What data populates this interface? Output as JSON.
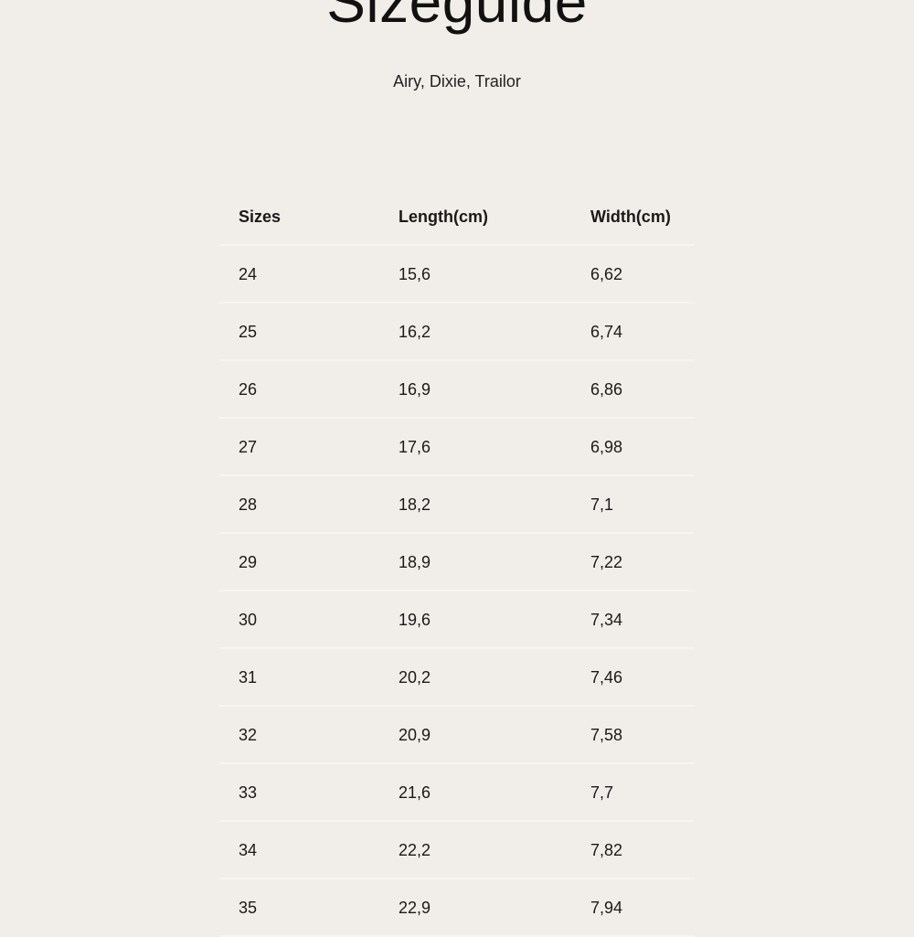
{
  "title": "Sizeguide",
  "subtitle": "Airy, Dixie, Trailor",
  "table": {
    "headers": [
      "Sizes",
      "Length(cm)",
      "Width(cm)"
    ],
    "rows": [
      [
        "24",
        "15,6",
        "6,62"
      ],
      [
        "25",
        "16,2",
        "6,74"
      ],
      [
        "26",
        "16,9",
        "6,86"
      ],
      [
        "27",
        "17,6",
        "6,98"
      ],
      [
        "28",
        "18,2",
        "7,1"
      ],
      [
        "29",
        "18,9",
        "7,22"
      ],
      [
        "30",
        "19,6",
        "7,34"
      ],
      [
        "31",
        "20,2",
        "7,46"
      ],
      [
        "32",
        "20,9",
        "7,58"
      ],
      [
        "33",
        "21,6",
        "7,7"
      ],
      [
        "34",
        "22,2",
        "7,82"
      ],
      [
        "35",
        "22,9",
        "7,94"
      ]
    ]
  }
}
